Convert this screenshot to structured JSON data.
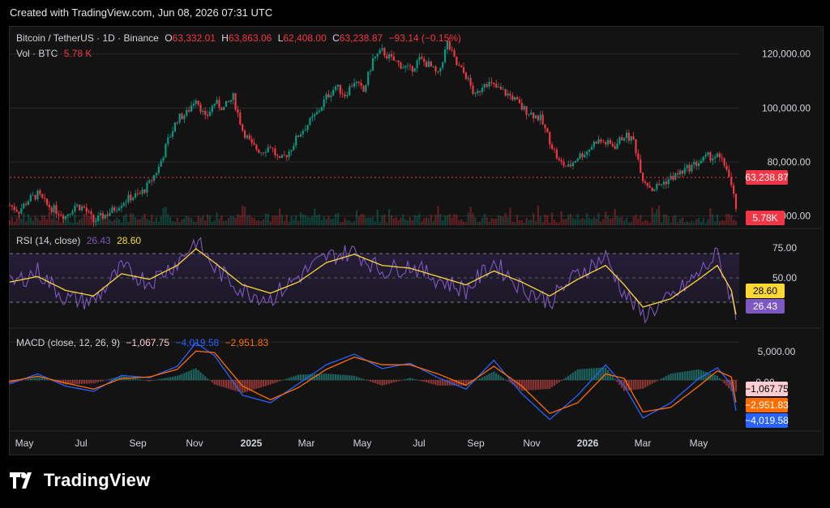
{
  "caption": "Created with TradingView.com, Jun 08, 2026 07:31 UTC",
  "brand": "TradingView",
  "colors": {
    "up": "#089981",
    "down": "#f23645",
    "rsi": "#7e57c2",
    "rsi_ma": "#fdd835",
    "macd": "#2962ff",
    "signal": "#ff6d00",
    "grid": "#2a2a2a",
    "text": "#d1d4dc"
  },
  "price_legend": {
    "symbol": "Bitcoin / TetherUS · 1D · Binance",
    "o_label": "O",
    "o": "63,332.01",
    "h_label": "H",
    "h": "63,863.06",
    "l_label": "L",
    "l": "62,408.00",
    "c_label": "C",
    "c": "63,238.87",
    "change": "−93.14 (−0.15%)"
  },
  "vol_legend": {
    "label": "Vol · BTC",
    "value": "5.78 K"
  },
  "rsi_legend": {
    "label": "RSI (14, close)",
    "rsi": "26.43",
    "ma": "28.60"
  },
  "macd_legend": {
    "label": "MACD (close, 12, 26, 9)",
    "hist": "−1,067.75",
    "macd": "−4,019.58",
    "signal": "−2,951.83"
  },
  "price_axis": {
    "ticks": [
      "120,000.00",
      "100,000.00",
      "80,000.00",
      "60,000.00"
    ],
    "last": "63,238.87",
    "vol_last": "5.78K"
  },
  "rsi_axis": {
    "ticks": [
      "75.00",
      "50.00"
    ],
    "rsi": "26.43",
    "ma": "28.60"
  },
  "macd_axis": {
    "ticks": [
      "5,000.00",
      "0.00"
    ],
    "hist": "−1,067.75",
    "signal": "−2,951.83",
    "macd": "−4,019.58"
  },
  "x_axis": {
    "labels": [
      "May",
      "Jul",
      "Sep",
      "Nov",
      "2025",
      "Mar",
      "May",
      "Jul",
      "Sep",
      "Nov",
      "2026",
      "Mar",
      "May"
    ]
  },
  "chart_data": [
    {
      "type": "line",
      "title": "Bitcoin / TetherUS · 1D · Binance",
      "ylim": [
        56000,
        128000
      ],
      "x": [
        "May",
        "Jul",
        "Sep",
        "Nov",
        "2025",
        "Mar",
        "May",
        "Jul",
        "Sep",
        "Nov",
        "2026",
        "Mar",
        "May"
      ],
      "series": [
        {
          "name": "Bitcoin / TetherUS",
          "values": [
            [
              0,
              64000
            ],
            [
              4,
              62000
            ],
            [
              8,
              66000
            ],
            [
              12,
              68000
            ],
            [
              16,
              64000
            ],
            [
              20,
              62000
            ],
            [
              24,
              60000
            ],
            [
              28,
              64000
            ],
            [
              32,
              63000
            ],
            [
              36,
              58000
            ],
            [
              40,
              60000
            ],
            [
              44,
              62000
            ],
            [
              48,
              65000
            ],
            [
              52,
              67000
            ],
            [
              56,
              68000
            ],
            [
              60,
              72000
            ],
            [
              64,
              78000
            ],
            [
              68,
              88000
            ],
            [
              72,
              96000
            ],
            [
              76,
              98000
            ],
            [
              80,
              104000
            ],
            [
              84,
              96000
            ],
            [
              88,
              102000
            ],
            [
              92,
              100000
            ],
            [
              96,
              104000
            ],
            [
              100,
              92000
            ],
            [
              104,
              86000
            ],
            [
              108,
              84000
            ],
            [
              112,
              86000
            ],
            [
              116,
              80000
            ],
            [
              120,
              84000
            ],
            [
              124,
              90000
            ],
            [
              128,
              94000
            ],
            [
              132,
              98000
            ],
            [
              136,
              104000
            ],
            [
              140,
              108000
            ],
            [
              144,
              105000
            ],
            [
              148,
              110000
            ],
            [
              152,
              106000
            ],
            [
              156,
              118000
            ],
            [
              160,
              121000
            ],
            [
              164,
              118000
            ],
            [
              168,
              116000
            ],
            [
              172,
              114000
            ],
            [
              176,
              118000
            ],
            [
              180,
              116000
            ],
            [
              184,
              112000
            ],
            [
              188,
              124000
            ],
            [
              192,
              116000
            ],
            [
              196,
              112000
            ],
            [
              200,
              104000
            ],
            [
              204,
              110000
            ],
            [
              208,
              108000
            ],
            [
              212,
              106000
            ],
            [
              216,
              104000
            ],
            [
              220,
              100000
            ],
            [
              224,
              98000
            ],
            [
              228,
              96000
            ],
            [
              232,
              88000
            ],
            [
              236,
              80000
            ],
            [
              240,
              78000
            ],
            [
              244,
              82000
            ],
            [
              248,
              84000
            ],
            [
              252,
              88000
            ],
            [
              256,
              87000
            ],
            [
              260,
              86000
            ],
            [
              264,
              90000
            ],
            [
              268,
              88000
            ],
            [
              272,
              74000
            ],
            [
              276,
              70000
            ],
            [
              280,
              72000
            ],
            [
              284,
              74000
            ],
            [
              288,
              76000
            ],
            [
              292,
              78000
            ],
            [
              296,
              80000
            ],
            [
              300,
              82000
            ],
            [
              304,
              82000
            ],
            [
              308,
              78000
            ],
            [
              312,
              63239
            ]
          ]
        }
      ]
    },
    {
      "type": "line",
      "title": "RSI (14, close)",
      "ylim": [
        20,
        90
      ],
      "series": [
        {
          "name": "RSI",
          "values": [
            [
              0,
              50
            ],
            [
              12,
              60
            ],
            [
              24,
              40
            ],
            [
              36,
              38
            ],
            [
              48,
              62
            ],
            [
              60,
              52
            ],
            [
              72,
              66
            ],
            [
              80,
              82
            ],
            [
              88,
              62
            ],
            [
              100,
              46
            ],
            [
              112,
              40
            ],
            [
              124,
              56
            ],
            [
              136,
              70
            ],
            [
              148,
              74
            ],
            [
              160,
              60
            ],
            [
              172,
              64
            ],
            [
              184,
              54
            ],
            [
              196,
              46
            ],
            [
              208,
              66
            ],
            [
              220,
              48
            ],
            [
              232,
              38
            ],
            [
              244,
              58
            ],
            [
              256,
              70
            ],
            [
              264,
              44
            ],
            [
              272,
              28
            ],
            [
              284,
              40
            ],
            [
              296,
              58
            ],
            [
              304,
              72
            ],
            [
              310,
              40
            ],
            [
              312,
              26.43
            ]
          ]
        },
        {
          "name": "MA",
          "values": [
            [
              0,
              52
            ],
            [
              12,
              56
            ],
            [
              24,
              46
            ],
            [
              36,
              42
            ],
            [
              48,
              58
            ],
            [
              60,
              54
            ],
            [
              72,
              64
            ],
            [
              80,
              76
            ],
            [
              88,
              66
            ],
            [
              100,
              50
            ],
            [
              112,
              44
            ],
            [
              124,
              52
            ],
            [
              136,
              66
            ],
            [
              148,
              72
            ],
            [
              160,
              64
            ],
            [
              172,
              62
            ],
            [
              184,
              56
            ],
            [
              196,
              50
            ],
            [
              208,
              60
            ],
            [
              220,
              52
            ],
            [
              232,
              42
            ],
            [
              244,
              54
            ],
            [
              256,
              64
            ],
            [
              264,
              50
            ],
            [
              272,
              34
            ],
            [
              284,
              40
            ],
            [
              296,
              54
            ],
            [
              304,
              64
            ],
            [
              310,
              46
            ],
            [
              312,
              28.6
            ]
          ]
        }
      ]
    },
    {
      "type": "line",
      "title": "MACD (close, 12, 26, 9)",
      "ylim": [
        -6500,
        6500
      ],
      "series": [
        {
          "name": "MACD",
          "values": [
            [
              0,
              -500
            ],
            [
              12,
              800
            ],
            [
              24,
              -800
            ],
            [
              36,
              -1500
            ],
            [
              48,
              600
            ],
            [
              60,
              300
            ],
            [
              72,
              1800
            ],
            [
              80,
              4900
            ],
            [
              88,
              3200
            ],
            [
              100,
              -2000
            ],
            [
              112,
              -3000
            ],
            [
              124,
              -500
            ],
            [
              136,
              2000
            ],
            [
              148,
              3400
            ],
            [
              160,
              1500
            ],
            [
              172,
              2200
            ],
            [
              184,
              300
            ],
            [
              196,
              -1200
            ],
            [
              208,
              2600
            ],
            [
              220,
              -1800
            ],
            [
              232,
              -5200
            ],
            [
              244,
              -2000
            ],
            [
              256,
              2000
            ],
            [
              264,
              -800
            ],
            [
              272,
              -5000
            ],
            [
              284,
              -3000
            ],
            [
              296,
              200
            ],
            [
              304,
              1600
            ],
            [
              310,
              -600
            ],
            [
              312,
              -4019.58
            ]
          ]
        },
        {
          "name": "Signal",
          "values": [
            [
              0,
              -200
            ],
            [
              12,
              500
            ],
            [
              24,
              -400
            ],
            [
              36,
              -1200
            ],
            [
              48,
              200
            ],
            [
              60,
              400
            ],
            [
              72,
              1400
            ],
            [
              80,
              3800
            ],
            [
              88,
              3600
            ],
            [
              100,
              -800
            ],
            [
              112,
              -2600
            ],
            [
              124,
              -1000
            ],
            [
              136,
              1400
            ],
            [
              148,
              3000
            ],
            [
              160,
              2000
            ],
            [
              172,
              2000
            ],
            [
              184,
              800
            ],
            [
              196,
              -700
            ],
            [
              208,
              1800
            ],
            [
              220,
              -800
            ],
            [
              232,
              -4400
            ],
            [
              244,
              -3000
            ],
            [
              256,
              800
            ],
            [
              264,
              200
            ],
            [
              272,
              -4200
            ],
            [
              284,
              -3600
            ],
            [
              296,
              -800
            ],
            [
              304,
              1200
            ],
            [
              310,
              400
            ],
            [
              312,
              -2951.83
            ]
          ]
        }
      ]
    }
  ]
}
